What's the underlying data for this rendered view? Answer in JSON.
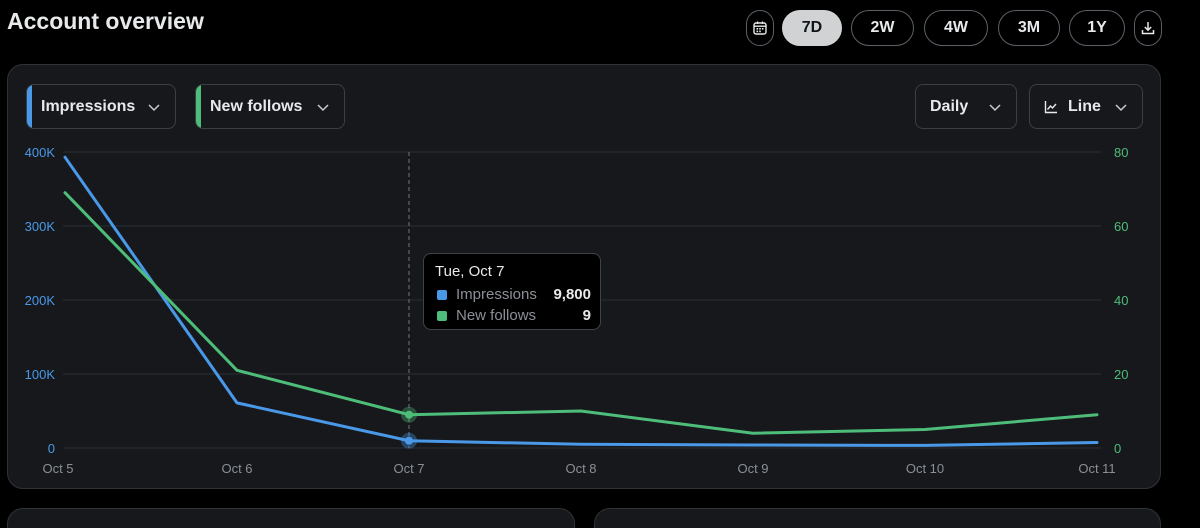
{
  "header": {
    "title": "Account overview"
  },
  "range": {
    "calendar_icon": "calendar-icon",
    "download_icon": "download-icon",
    "options": [
      {
        "label": "7D",
        "active": true
      },
      {
        "label": "2W",
        "active": false
      },
      {
        "label": "4W",
        "active": false
      },
      {
        "label": "3M",
        "active": false
      },
      {
        "label": "1Y",
        "active": false
      }
    ]
  },
  "controls": {
    "metric1": {
      "label": "Impressions",
      "color": "#4a99e9"
    },
    "metric2": {
      "label": "New follows",
      "color": "#4ebd79"
    },
    "interval": {
      "label": "Daily"
    },
    "chart_type": {
      "label": "Line",
      "icon": "line-chart-icon"
    }
  },
  "tooltip": {
    "title": "Tue, Oct 7",
    "rows": [
      {
        "label": "Impressions",
        "value": "9,800",
        "color": "#4a99e9"
      },
      {
        "label": "New follows",
        "value": "9",
        "color": "#4ebd79"
      }
    ]
  },
  "chart_data": {
    "type": "line",
    "x": [
      "Oct 5",
      "Oct 6",
      "Oct 7",
      "Oct 8",
      "Oct 9",
      "Oct 10",
      "Oct 11"
    ],
    "series": [
      {
        "name": "Impressions",
        "axis": "left",
        "color": "#4a99e9",
        "values": [
          393000,
          61000,
          9800,
          5000,
          4000,
          3500,
          7500
        ]
      },
      {
        "name": "New follows",
        "axis": "right",
        "color": "#4ebd79",
        "values": [
          69,
          21,
          9,
          10,
          4,
          5,
          9
        ]
      }
    ],
    "y_left": {
      "ticks": [
        0,
        100000,
        200000,
        300000,
        400000
      ],
      "tick_labels": [
        "0",
        "100K",
        "200K",
        "300K",
        "400K"
      ],
      "range": [
        0,
        400000
      ],
      "color": "#4a99e9"
    },
    "y_right": {
      "ticks": [
        0,
        20,
        40,
        60,
        80
      ],
      "tick_labels": [
        "0",
        "20",
        "40",
        "60",
        "80"
      ],
      "range": [
        0,
        80
      ],
      "color": "#4ebd79"
    },
    "highlight_index": 2,
    "grid": true
  }
}
